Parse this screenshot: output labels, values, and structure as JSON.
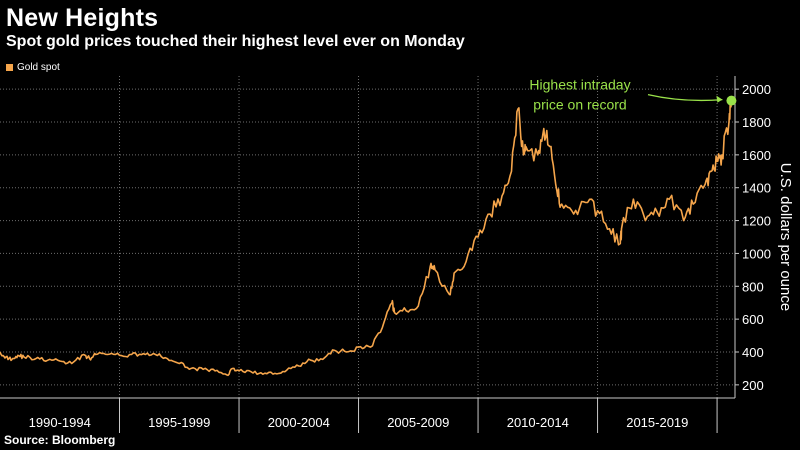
{
  "header": {
    "title": "New Heights",
    "subtitle": "Spot gold prices touched their highest level ever on Monday"
  },
  "footer": {
    "source": "Source: Bloomberg"
  },
  "colors": {
    "series": "#f5a54b",
    "highlight": "#9ae24a",
    "grid": "#6e6e6e",
    "axis": "#c8c8c8",
    "background": "#000000"
  },
  "chart_data": {
    "type": "line",
    "title": "New Heights",
    "subtitle": "Spot gold prices touched their highest level ever on Monday",
    "xlabel": "",
    "ylabel": "U.S. dollars per ounce",
    "ylim": [
      120,
      2080
    ],
    "xlim": [
      1990,
      2020.75
    ],
    "y_ticks": [
      200,
      400,
      600,
      800,
      1000,
      1200,
      1400,
      1600,
      1800,
      2000
    ],
    "x_tick_labels": [
      {
        "label": "1990-1994",
        "from": 1990,
        "to": 1995
      },
      {
        "label": "1995-1999",
        "from": 1995,
        "to": 2000
      },
      {
        "label": "2000-2004",
        "from": 2000,
        "to": 2005
      },
      {
        "label": "2005-2009",
        "from": 2005,
        "to": 2010
      },
      {
        "label": "2010-2014",
        "from": 2010,
        "to": 2015
      },
      {
        "label": "2015-2019",
        "from": 2015,
        "to": 2020
      }
    ],
    "grid": true,
    "legend_position": "top-left",
    "series": [
      {
        "name": "Gold spot",
        "x": [
          1990.0,
          1990.25,
          1990.5,
          1990.75,
          1991.0,
          1991.5,
          1992.0,
          1992.5,
          1993.0,
          1993.5,
          1993.75,
          1994.0,
          1994.5,
          1995.0,
          1995.5,
          1996.0,
          1996.5,
          1997.0,
          1997.5,
          1998.0,
          1998.5,
          1999.0,
          1999.5,
          1999.75,
          2000.0,
          2000.5,
          2001.0,
          2001.5,
          2002.0,
          2002.5,
          2003.0,
          2003.5,
          2004.0,
          2004.5,
          2005.0,
          2005.5,
          2006.0,
          2006.4,
          2006.5,
          2007.0,
          2007.5,
          2008.0,
          2008.2,
          2008.8,
          2009.0,
          2009.5,
          2010.0,
          2010.5,
          2011.0,
          2011.4,
          2011.67,
          2011.9,
          2012.0,
          2012.5,
          2012.75,
          2013.0,
          2013.3,
          2013.5,
          2014.0,
          2014.5,
          2015.0,
          2015.5,
          2015.95,
          2016.0,
          2016.5,
          2017.0,
          2017.5,
          2018.0,
          2018.6,
          2019.0,
          2019.5,
          2019.75,
          2020.0,
          2020.2,
          2020.5,
          2020.6
        ],
        "values": [
          400,
          370,
          355,
          380,
          370,
          360,
          350,
          345,
          330,
          385,
          360,
          385,
          385,
          380,
          385,
          390,
          385,
          360,
          330,
          300,
          295,
          285,
          260,
          300,
          285,
          280,
          265,
          270,
          290,
          315,
          350,
          355,
          410,
          400,
          430,
          430,
          550,
          700,
          640,
          650,
          680,
          920,
          900,
          750,
          880,
          950,
          1100,
          1240,
          1350,
          1500,
          1880,
          1600,
          1650,
          1600,
          1760,
          1650,
          1380,
          1300,
          1240,
          1310,
          1260,
          1150,
          1060,
          1150,
          1330,
          1200,
          1250,
          1330,
          1200,
          1300,
          1420,
          1500,
          1560,
          1600,
          1800,
          1930
        ]
      }
    ],
    "annotation": {
      "text_line1": "Highest intraday",
      "text_line2": "price on record",
      "point": {
        "x": 2020.6,
        "y": 1930
      }
    }
  }
}
